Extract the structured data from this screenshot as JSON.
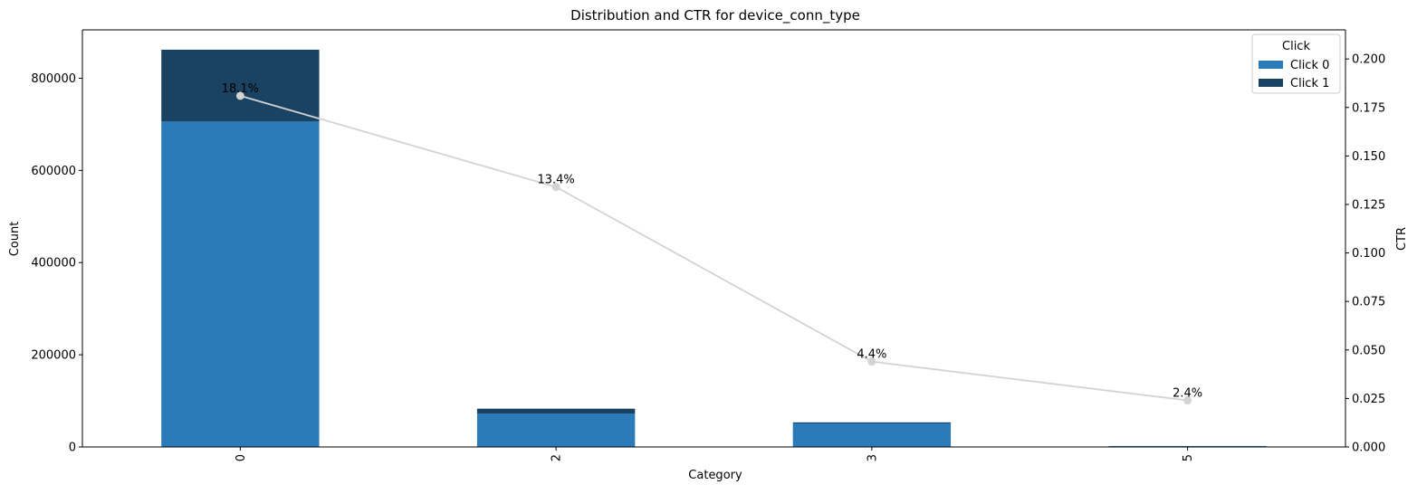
{
  "chart_data": {
    "type": "bar",
    "stacked": true,
    "title": "Distribution and CTR for device_conn_type",
    "xlabel": "Category",
    "ylabel": "Count",
    "y2label": "CTR",
    "categories": [
      "0",
      "2",
      "3",
      "5"
    ],
    "series": [
      {
        "name": "Click 0",
        "color": "#2b7bb9",
        "values": [
          706000,
          72000,
          51000,
          2000
        ]
      },
      {
        "name": "Click 1",
        "color": "#1a4363",
        "values": [
          156000,
          11000,
          2300,
          50
        ]
      }
    ],
    "ctr_line": {
      "color": "#d3d3d3",
      "values": [
        0.181,
        0.134,
        0.044,
        0.024
      ],
      "labels": [
        "18.1%",
        "13.4%",
        "4.4%",
        "2.4%"
      ]
    },
    "ylim": [
      0,
      905000
    ],
    "y_ticks": [
      0,
      200000,
      400000,
      600000,
      800000
    ],
    "y_tick_labels": [
      "0",
      "200000",
      "400000",
      "600000",
      "800000"
    ],
    "y2lim": [
      0,
      0.215
    ],
    "y2_ticks": [
      0,
      0.025,
      0.05,
      0.075,
      0.1,
      0.125,
      0.15,
      0.175,
      0.2
    ],
    "y2_tick_labels": [
      "0.000",
      "0.025",
      "0.050",
      "0.075",
      "0.100",
      "0.125",
      "0.150",
      "0.175",
      "0.200"
    ],
    "legend": {
      "title": "Click",
      "placement": "top-right",
      "entries": [
        "Click 0",
        "Click 1"
      ]
    },
    "grid": false
  }
}
